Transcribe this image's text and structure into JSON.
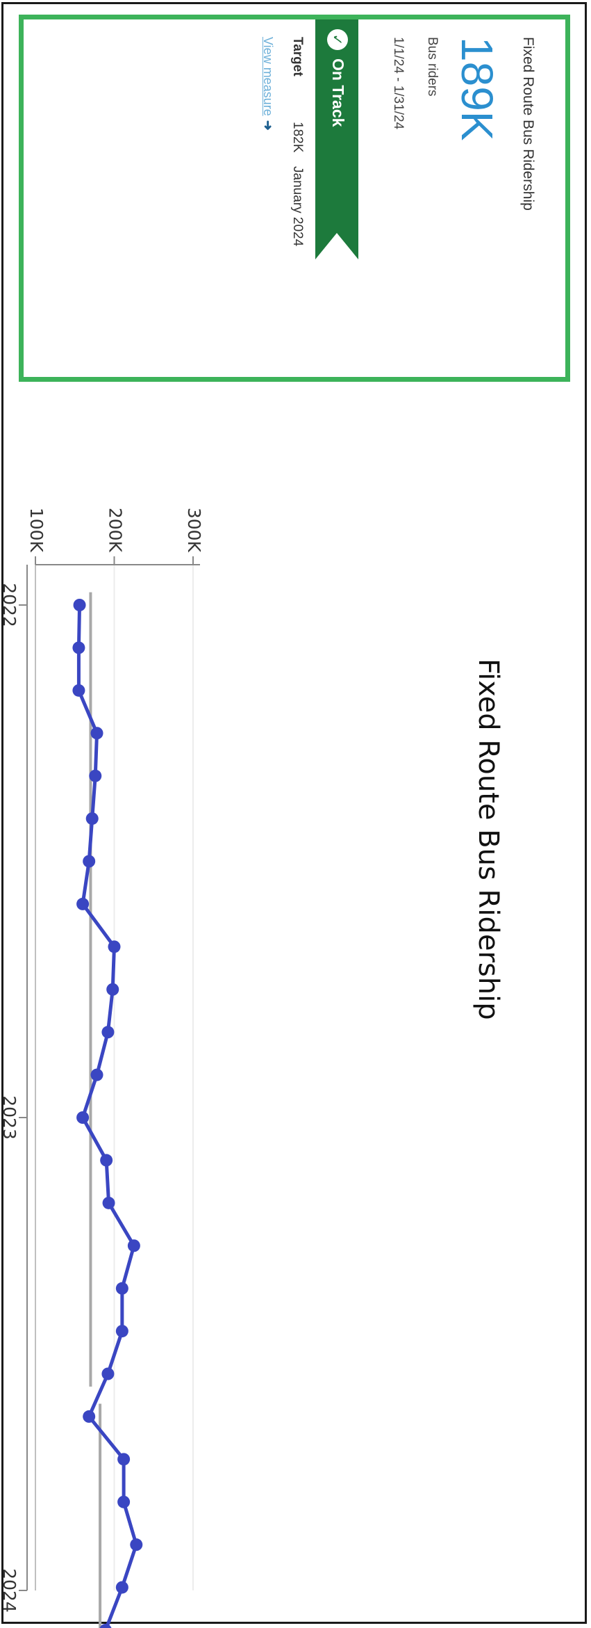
{
  "page_title": "Fixed Route Bus Ridership",
  "kpi_card": {
    "title": "Fixed Route Bus Ridership",
    "value": "189K",
    "unit": "Bus riders",
    "period": "1/1/24 - 1/31/24",
    "status": "On Track",
    "status_icon": "check-circle-icon",
    "target_label": "Target",
    "target_value": "182K",
    "target_date": "January 2024",
    "link_label": "View measure",
    "link_icon": "arrow-right-icon"
  },
  "colors": {
    "card_border": "#3db35a",
    "value": "#2b8fcf",
    "status_ribbon": "#1d7a3c",
    "series": "#3a46c2",
    "target_line": "#a8a8a8",
    "link": "#6db0d9"
  },
  "chart_data": {
    "type": "line",
    "x_ticks": [
      "2022",
      "2023",
      "2024"
    ],
    "y_ticks": [
      "100K",
      "200K",
      "300K"
    ],
    "ylim": [
      100000,
      300000
    ],
    "grid": true,
    "series": [
      {
        "values": [
          {
            "date": "2022-01",
            "value": 156000
          },
          {
            "date": "2022-02",
            "value": 155000
          },
          {
            "date": "2022-03",
            "value": 155000
          },
          {
            "date": "2022-04",
            "value": 178000
          },
          {
            "date": "2022-05",
            "value": 176000
          },
          {
            "date": "2022-06",
            "value": 172000
          },
          {
            "date": "2022-07",
            "value": 168000
          },
          {
            "date": "2022-08",
            "value": 160000
          },
          {
            "date": "2022-09",
            "value": 200000
          },
          {
            "date": "2022-10",
            "value": 198000
          },
          {
            "date": "2022-11",
            "value": 192000
          },
          {
            "date": "2022-12",
            "value": 178000
          },
          {
            "date": "2023-01",
            "value": 160000
          },
          {
            "date": "2023-02",
            "value": 190000
          },
          {
            "date": "2023-03",
            "value": 193000
          },
          {
            "date": "2023-04",
            "value": 225000
          },
          {
            "date": "2023-05",
            "value": 210000
          },
          {
            "date": "2023-06",
            "value": 210000
          },
          {
            "date": "2023-07",
            "value": 192000
          },
          {
            "date": "2023-08",
            "value": 168000
          },
          {
            "date": "2023-09",
            "value": 212000
          },
          {
            "date": "2023-10",
            "value": 212000
          },
          {
            "date": "2023-11",
            "value": 228000
          },
          {
            "date": "2023-12",
            "value": 210000
          },
          {
            "date": "2024-01",
            "value": 189000
          }
        ]
      }
    ],
    "targets": [
      {
        "from": "2022-01",
        "to": "2023-07",
        "value": 170000
      },
      {
        "from": "2023-08",
        "to": "2024-01",
        "value": 182000
      }
    ]
  }
}
